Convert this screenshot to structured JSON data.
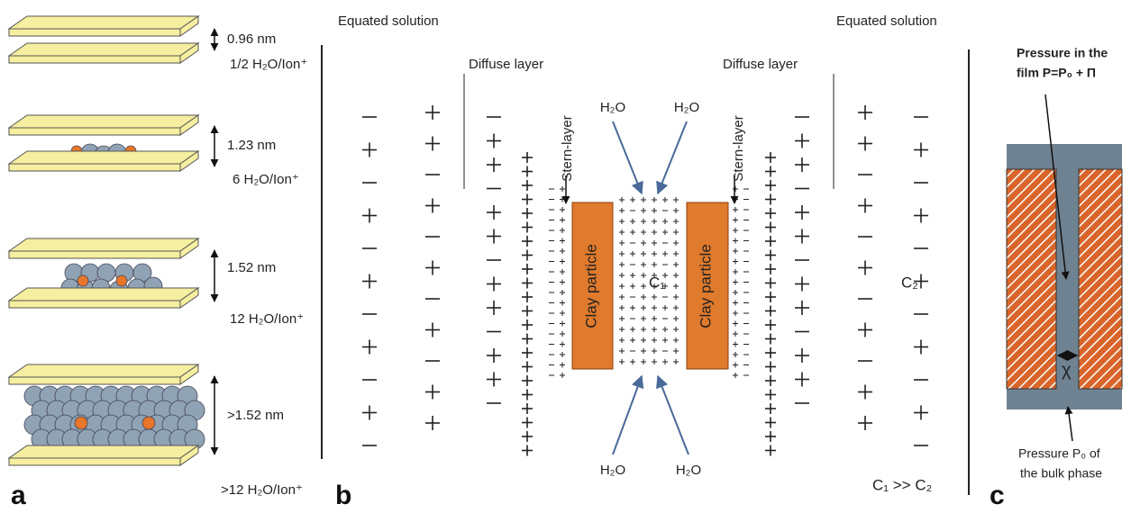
{
  "panel_a": {
    "label": "a",
    "layers": [
      {
        "spacing": "0.96 nm",
        "hydration": "1/2 H₂O/Ion⁺"
      },
      {
        "spacing": "1.23 nm",
        "hydration": "6 H₂O/Ion⁺"
      },
      {
        "spacing": "1.52 nm",
        "hydration": "12 H₂O/Ion⁺"
      },
      {
        "spacing": ">1.52 nm",
        "hydration": ">12 H₂O/Ion⁺"
      }
    ]
  },
  "panel_b": {
    "label": "b",
    "equated_solution_left": "Equated solution",
    "equated_solution_right": "Equated solution",
    "diffuse_layer_left": "Diffuse layer",
    "diffuse_layer_right": "Diffuse layer",
    "stern_layer_left": "Stern-layer",
    "stern_layer_right": "Stern-layer",
    "water_labels": [
      "H₂O",
      "H₂O",
      "H₂O",
      "H₂O"
    ],
    "clay_particles": [
      "Clay particle",
      "Clay particle"
    ],
    "c1": "C₁",
    "c2": "C₂",
    "relation": "C₁ >> C₂"
  },
  "panel_c": {
    "label": "c",
    "film_pressure": [
      "Pressure in the",
      "film P=P₀ + Π"
    ],
    "gap": "χ",
    "bulk_pressure": [
      "Pressure P₀ of",
      "the bulk phase"
    ]
  }
}
